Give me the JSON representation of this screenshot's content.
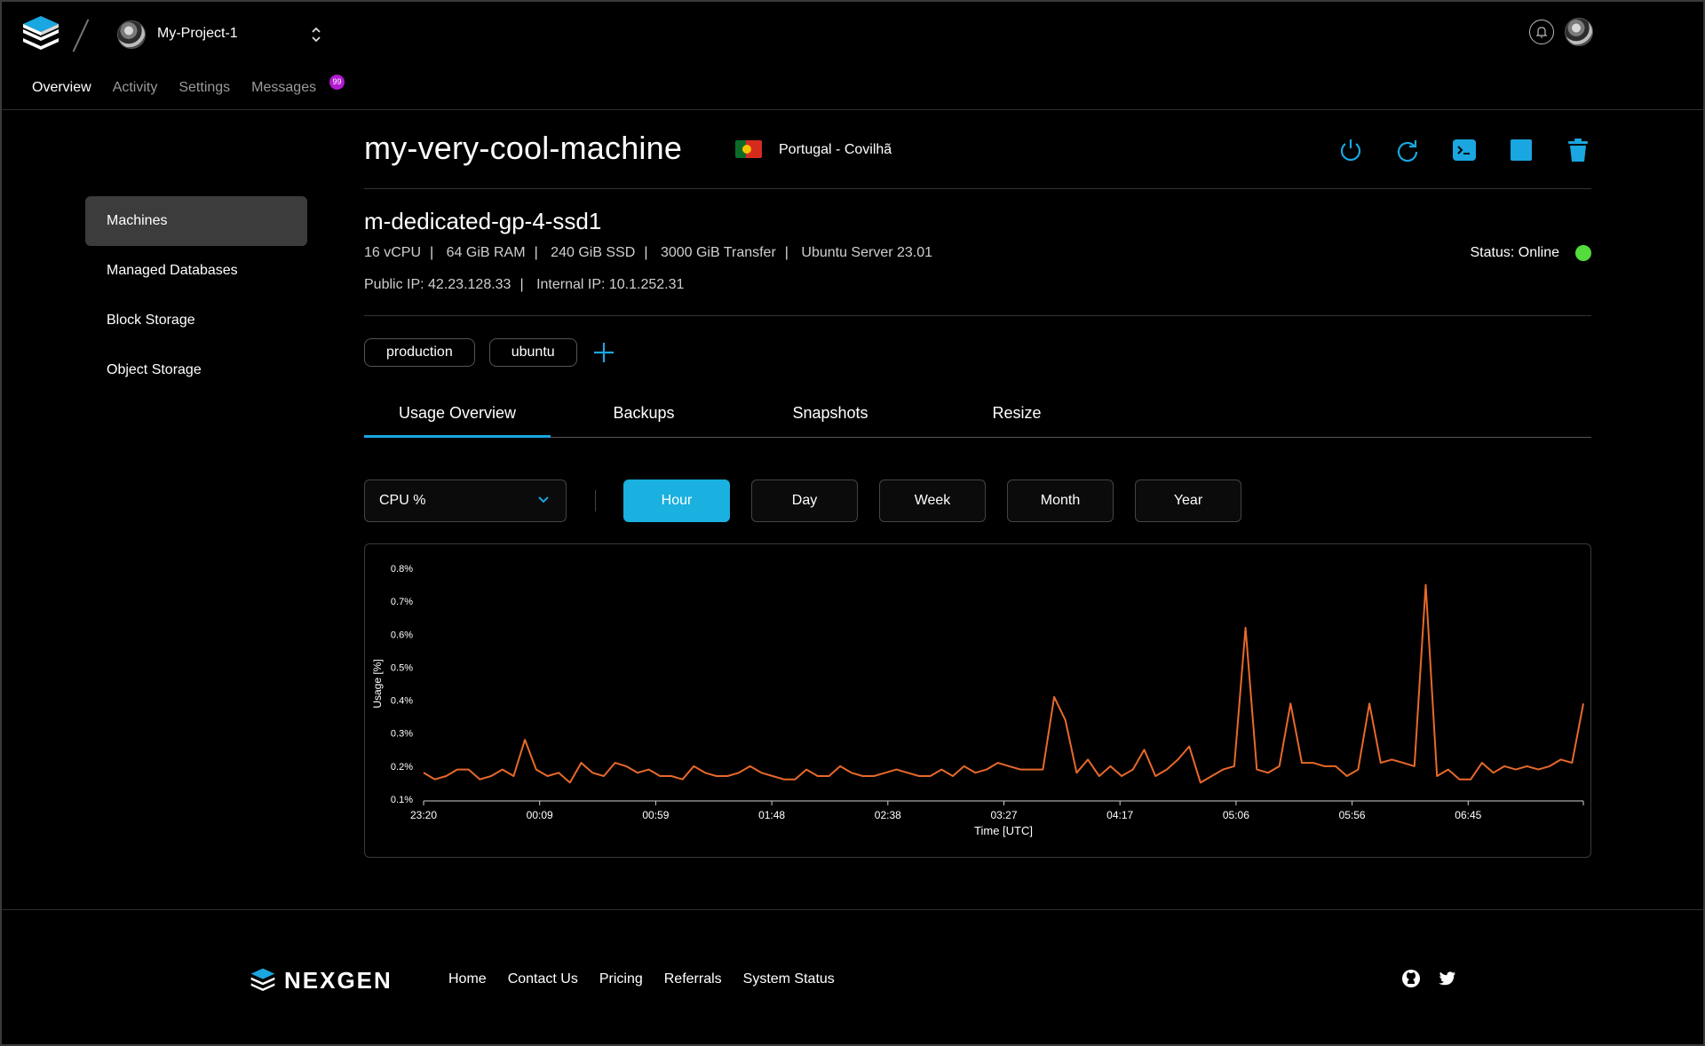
{
  "header": {
    "project_name": "My-Project-1",
    "nav": [
      "Overview",
      "Activity",
      "Settings",
      "Messages"
    ],
    "messages_badge": "99"
  },
  "sidebar": {
    "items": [
      {
        "label": "Machines",
        "active": true
      },
      {
        "label": "Managed Databases",
        "active": false
      },
      {
        "label": "Block Storage",
        "active": false
      },
      {
        "label": "Object Storage",
        "active": false
      }
    ]
  },
  "machine": {
    "name": "my-very-cool-machine",
    "location": "Portugal - Covilhã",
    "plan": "m-dedicated-gp-4-ssd1",
    "specs": [
      "16 vCPU",
      "64 GiB RAM",
      "240 GiB SSD",
      "3000 GiB Transfer",
      "Ubuntu Server 23.01"
    ],
    "public_ip": "Public IP: 42.23.128.33",
    "internal_ip": "Internal IP: 10.1.252.31",
    "status": "Status: Online",
    "status_color": "#53dc3c",
    "actions": [
      "power-icon",
      "restart-icon",
      "console-icon",
      "stop-icon",
      "trash-icon"
    ]
  },
  "tags": [
    "production",
    "ubuntu"
  ],
  "tabs": [
    "Usage Overview",
    "Backups",
    "Snapshots",
    "Resize"
  ],
  "metric_select": "CPU %",
  "ranges": [
    "Hour",
    "Day",
    "Week",
    "Month",
    "Year"
  ],
  "active_range": "Hour",
  "accent_color": "#1ab0e0",
  "chart_data": {
    "type": "line",
    "xlabel": "Time [UTC]",
    "ylabel": "Usage [%]",
    "ylim": [
      0.1,
      0.8
    ],
    "yticks": [
      "0.1%",
      "0.2%",
      "0.3%",
      "0.4%",
      "0.5%",
      "0.6%",
      "0.7%",
      "0.8%"
    ],
    "xticks": [
      "23:20",
      "00:09",
      "00:59",
      "01:48",
      "02:38",
      "03:27",
      "04:17",
      "05:06",
      "05:56",
      "06:45"
    ],
    "series": [
      {
        "color": "#e8692a",
        "values": [
          0.18,
          0.16,
          0.17,
          0.19,
          0.19,
          0.16,
          0.17,
          0.19,
          0.17,
          0.28,
          0.19,
          0.17,
          0.18,
          0.15,
          0.21,
          0.18,
          0.17,
          0.21,
          0.2,
          0.18,
          0.19,
          0.17,
          0.17,
          0.16,
          0.2,
          0.18,
          0.17,
          0.17,
          0.18,
          0.2,
          0.18,
          0.17,
          0.16,
          0.16,
          0.19,
          0.17,
          0.17,
          0.2,
          0.18,
          0.17,
          0.17,
          0.18,
          0.19,
          0.18,
          0.17,
          0.17,
          0.19,
          0.17,
          0.2,
          0.18,
          0.19,
          0.21,
          0.2,
          0.19,
          0.19,
          0.19,
          0.41,
          0.34,
          0.18,
          0.22,
          0.17,
          0.2,
          0.17,
          0.19,
          0.25,
          0.17,
          0.19,
          0.22,
          0.26,
          0.15,
          0.17,
          0.19,
          0.2,
          0.62,
          0.19,
          0.18,
          0.2,
          0.39,
          0.21,
          0.21,
          0.2,
          0.2,
          0.17,
          0.19,
          0.39,
          0.21,
          0.22,
          0.21,
          0.2,
          0.75,
          0.17,
          0.19,
          0.16,
          0.16,
          0.21,
          0.18,
          0.2,
          0.19,
          0.2,
          0.19,
          0.2,
          0.22,
          0.21,
          0.39
        ]
      }
    ]
  },
  "footer": {
    "brand": "NEXGEN",
    "links": [
      "Home",
      "Contact Us",
      "Pricing",
      "Referrals",
      "System Status"
    ],
    "social": [
      "github-icon",
      "twitter-icon"
    ]
  }
}
